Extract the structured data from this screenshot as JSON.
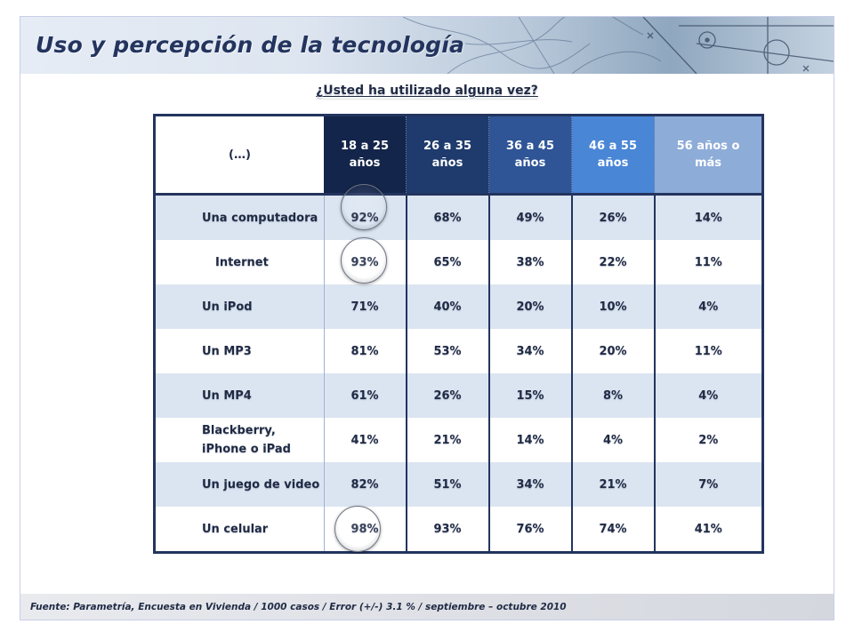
{
  "slide": {
    "title": "Uso y percepción de la tecnología",
    "question": "¿Usted ha utilizado alguna vez?",
    "source": "Fuente: Parametría, Encuesta en Vivienda / 1000 casos / Error (+/-) 3.1 % / septiembre – octubre 2010"
  },
  "table": {
    "label_header": "(…)",
    "columns": [
      "18 a 25 años",
      "26 a 35 años",
      "36 a 45 años",
      "46 a 55 años",
      "56 años o más"
    ],
    "rows": [
      {
        "label": "Una computadora",
        "values": [
          "92%",
          "68%",
          "49%",
          "26%",
          "14%"
        ]
      },
      {
        "label": "Internet",
        "values": [
          "93%",
          "65%",
          "38%",
          "22%",
          "11%"
        ]
      },
      {
        "label": "Un iPod",
        "values": [
          "71%",
          "40%",
          "20%",
          "10%",
          "4%"
        ]
      },
      {
        "label": "Un MP3",
        "values": [
          "81%",
          "53%",
          "34%",
          "20%",
          "11%"
        ]
      },
      {
        "label": "Un MP4",
        "values": [
          "61%",
          "26%",
          "15%",
          "8%",
          "4%"
        ]
      },
      {
        "label": "Blackberry, iPhone o iPad",
        "values": [
          "41%",
          "21%",
          "14%",
          "4%",
          "2%"
        ]
      },
      {
        "label": "Un juego de video",
        "values": [
          "82%",
          "51%",
          "34%",
          "21%",
          "7%"
        ]
      },
      {
        "label": "Un celular",
        "values": [
          "98%",
          "93%",
          "76%",
          "74%",
          "41%"
        ]
      }
    ],
    "highlighted": [
      "Una computadora",
      "Internet",
      "Un celular"
    ]
  },
  "colors": {
    "title": "#23345e",
    "table_border": "#23345e",
    "row_band": "#dbe5f1",
    "header_columns": [
      "#13254a",
      "#1f3b6d",
      "#2f5597",
      "#4a86d6",
      "#8eacd8"
    ]
  }
}
